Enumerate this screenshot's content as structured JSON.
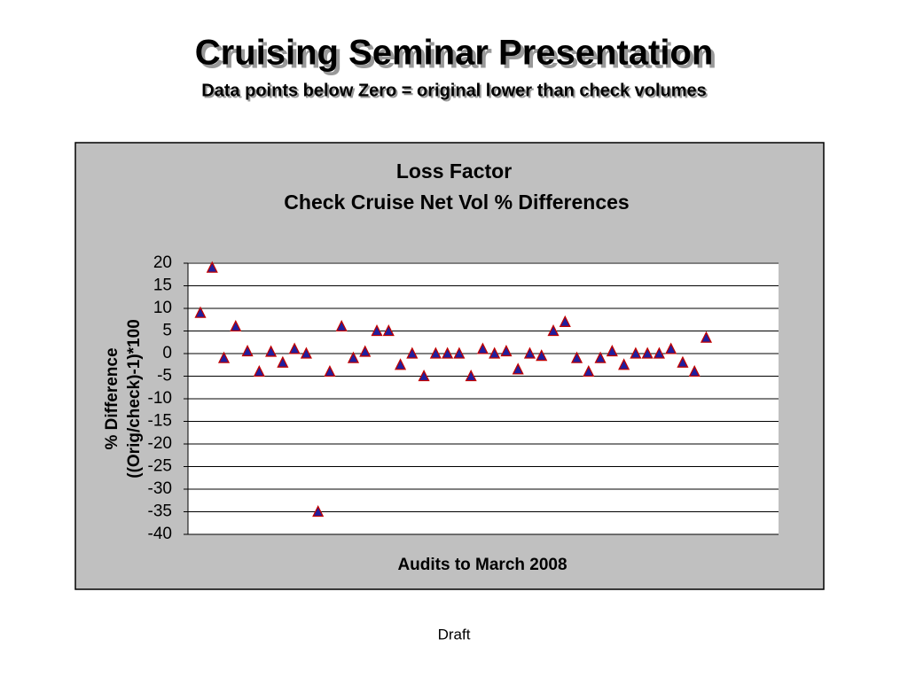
{
  "slide_title": "Cruising Seminar Presentation",
  "slide_subtitle": "Data points below Zero = original lower than check volumes",
  "footer": "Draft",
  "chart_data": {
    "type": "scatter",
    "title": [
      "Loss Factor",
      "Check Cruise Net Vol % Differences"
    ],
    "x_label": "Audits to March 2008",
    "y_label": [
      "% Difference",
      "((Orig/check)-1)*100"
    ],
    "marker_color": "#1f1f9f",
    "marker_edge": "#c00000",
    "grid": true,
    "ylim": [
      -40,
      20
    ],
    "yticks": [
      -40,
      -35,
      -30,
      -25,
      -20,
      -15,
      -10,
      -5,
      0,
      5,
      10,
      15,
      20
    ],
    "values": [
      9,
      19,
      -1,
      6,
      0.5,
      -4,
      0.4,
      -2,
      1,
      0,
      -35,
      -4,
      6,
      -1,
      0.4,
      5,
      5,
      -2.5,
      0,
      -5,
      0,
      0,
      0,
      -5,
      1,
      0,
      0.5,
      -3.5,
      0,
      -0.5,
      5,
      7,
      -1,
      -4,
      -1,
      0.5,
      -2.5,
      0,
      0,
      0,
      1,
      -2,
      -4,
      3.5
    ]
  }
}
